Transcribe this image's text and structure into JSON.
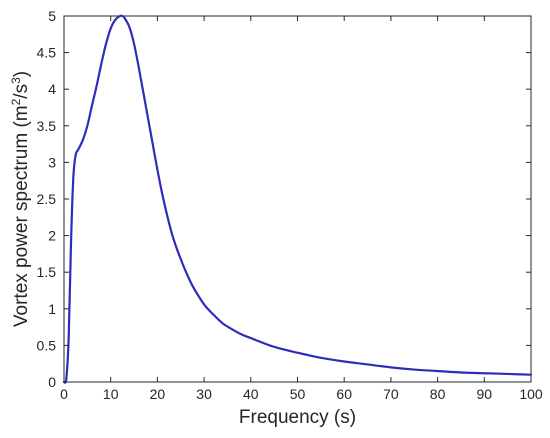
{
  "chart_data": {
    "type": "line",
    "xlabel": "Frequency (s)",
    "ylabel": {
      "prefix": "Vortex power spectrum (m",
      "sup1": "2",
      "mid": "/s",
      "sup2": "3",
      "suffix": ")"
    },
    "xlim": [
      0,
      100
    ],
    "ylim": [
      0,
      5
    ],
    "xticks": [
      "0",
      "10",
      "20",
      "30",
      "40",
      "50",
      "60",
      "70",
      "80",
      "90",
      "100"
    ],
    "yticks": [
      "0",
      "0.5",
      "1",
      "1.5",
      "2",
      "2.5",
      "3",
      "3.5",
      "4",
      "4.5",
      "5"
    ],
    "grid": false,
    "color": "#2e2db8",
    "series": [
      {
        "x": [
          0,
          0.5,
          1,
          1.5,
          2,
          2.5,
          3,
          4,
          5,
          6,
          7,
          8,
          9,
          10,
          11,
          12,
          12.5,
          13,
          14,
          15,
          16,
          17,
          18,
          19,
          20,
          21,
          22,
          23,
          24,
          25,
          26,
          27,
          28,
          30,
          32,
          34,
          36,
          38,
          40,
          45,
          50,
          55,
          60,
          65,
          70,
          75,
          80,
          85,
          90,
          95,
          100
        ],
        "y": [
          0,
          0.05,
          0.6,
          1.9,
          2.8,
          3.1,
          3.17,
          3.3,
          3.5,
          3.78,
          4.05,
          4.35,
          4.62,
          4.83,
          4.95,
          5.0,
          5.0,
          4.97,
          4.85,
          4.62,
          4.3,
          3.95,
          3.6,
          3.25,
          2.9,
          2.58,
          2.3,
          2.05,
          1.85,
          1.68,
          1.52,
          1.38,
          1.26,
          1.06,
          0.92,
          0.8,
          0.72,
          0.65,
          0.6,
          0.48,
          0.4,
          0.33,
          0.28,
          0.24,
          0.2,
          0.17,
          0.15,
          0.13,
          0.12,
          0.11,
          0.1
        ]
      }
    ]
  }
}
